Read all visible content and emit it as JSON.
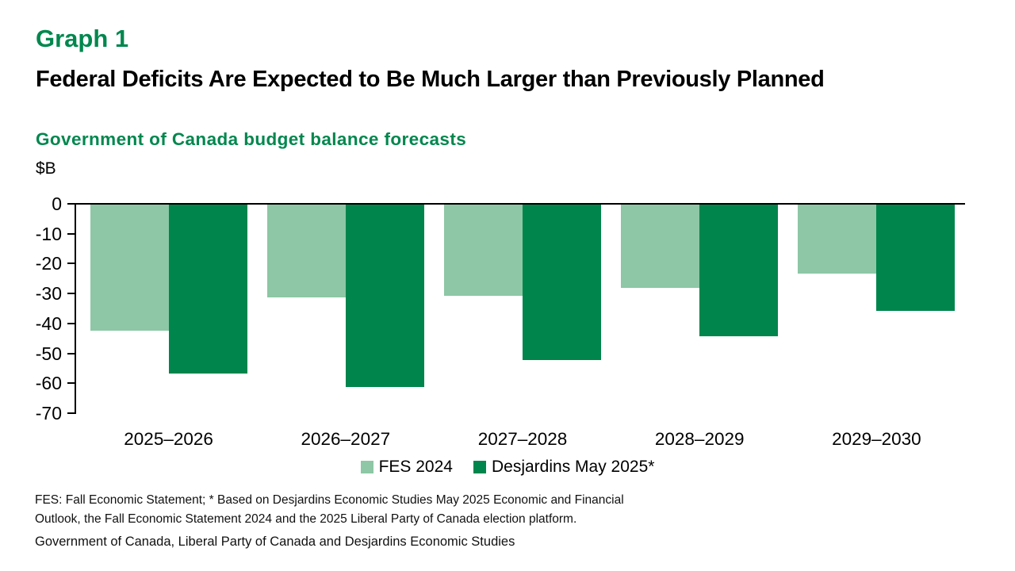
{
  "header": {
    "graph_label": "Graph 1",
    "title": "Federal Deficits Are Expected to Be Much Larger than Previously Planned",
    "subtitle": "Government of Canada budget balance forecasts",
    "unit_label": "$B"
  },
  "chart_data": {
    "type": "bar",
    "title": "Government of Canada budget balance forecasts",
    "unit": "$B",
    "ylabel": "$B",
    "xlabel": "",
    "ylim": [
      -70,
      0
    ],
    "yticks": [
      0,
      -10,
      -20,
      -30,
      -40,
      -50,
      -60,
      -70
    ],
    "grid": false,
    "legend_position": "bottom",
    "categories": [
      "2025–2026",
      "2026–2027",
      "2027–2028",
      "2028–2029",
      "2029–2030"
    ],
    "series": [
      {
        "name": "FES 2024",
        "color": "#8DC7A5",
        "values": [
          -42.2,
          -31.0,
          -30.4,
          -27.8,
          -23.0
        ]
      },
      {
        "name": "Desjardins May 2025*",
        "color": "#00854C",
        "values": [
          -56.5,
          -61.0,
          -52.0,
          -44.0,
          -35.5
        ]
      }
    ]
  },
  "footer": {
    "note_lines": [
      "FES: Fall Economic Statement; * Based on Desjardins Economic Studies May 2025 Economic and Financial",
      "Outlook, the Fall Economic Statement 2024 and the 2025 Liberal Party of Canada election platform."
    ],
    "source": "Government of Canada, Liberal Party of Canada and Desjardins Economic Studies"
  },
  "colors": {
    "brand_green": "#00874E",
    "light_green": "#8DC7A5",
    "dark_green": "#00854C",
    "axis_black": "#000000"
  }
}
